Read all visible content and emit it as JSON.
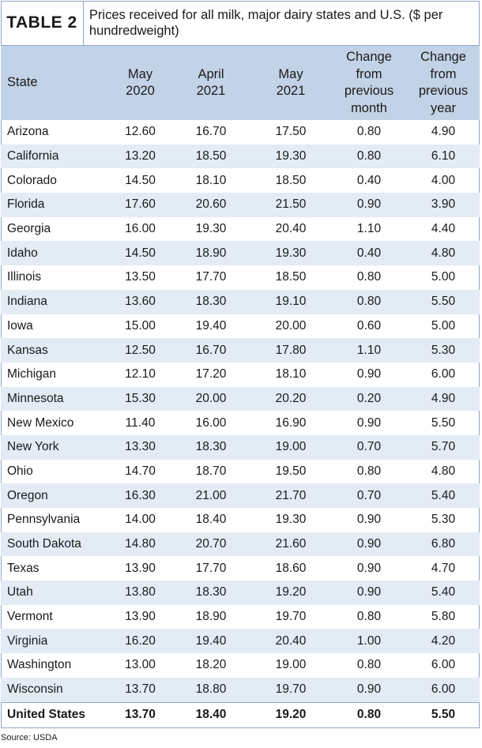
{
  "table_label": "TABLE 2",
  "title": "Prices received for all milk, major dairy states and U.S. ($ per hundredweight)",
  "columns": [
    {
      "line1": "State"
    },
    {
      "line1": "May",
      "line2": "2020"
    },
    {
      "line1": "April",
      "line2": "2021"
    },
    {
      "line1": "May",
      "line2": "2021"
    },
    {
      "line1": "Change",
      "line2": "from",
      "line3": "previous",
      "line4": "month"
    },
    {
      "line1": "Change",
      "line2": "from",
      "line3": "previous",
      "line4": "year"
    }
  ],
  "rows": [
    [
      "Arizona",
      "12.60",
      "16.70",
      "17.50",
      "0.80",
      "4.90"
    ],
    [
      "California",
      "13.20",
      "18.50",
      "19.30",
      "0.80",
      "6.10"
    ],
    [
      "Colorado",
      "14.50",
      "18.10",
      "18.50",
      "0.40",
      "4.00"
    ],
    [
      "Florida",
      "17.60",
      "20.60",
      "21.50",
      "0.90",
      "3.90"
    ],
    [
      "Georgia",
      "16.00",
      "19.30",
      "20.40",
      "1.10",
      "4.40"
    ],
    [
      "Idaho",
      "14.50",
      "18.90",
      "19.30",
      "0.40",
      "4.80"
    ],
    [
      "Illinois",
      "13.50",
      "17.70",
      "18.50",
      "0.80",
      "5.00"
    ],
    [
      "Indiana",
      "13.60",
      "18.30",
      "19.10",
      "0.80",
      "5.50"
    ],
    [
      "Iowa",
      "15.00",
      "19.40",
      "20.00",
      "0.60",
      "5.00"
    ],
    [
      "Kansas",
      "12.50",
      "16.70",
      "17.80",
      "1.10",
      "5.30"
    ],
    [
      "Michigan",
      "12.10",
      "17.20",
      "18.10",
      "0.90",
      "6.00"
    ],
    [
      "Minnesota",
      "15.30",
      "20.00",
      "20.20",
      "0.20",
      "4.90"
    ],
    [
      "New Mexico",
      "11.40",
      "16.00",
      "16.90",
      "0.90",
      "5.50"
    ],
    [
      "New York",
      "13.30",
      "18.30",
      "19.00",
      "0.70",
      "5.70"
    ],
    [
      "Ohio",
      "14.70",
      "18.70",
      "19.50",
      "0.80",
      "4.80"
    ],
    [
      "Oregon",
      "16.30",
      "21.00",
      "21.70",
      "0.70",
      "5.40"
    ],
    [
      "Pennsylvania",
      "14.00",
      "18.40",
      "19.30",
      "0.90",
      "5.30"
    ],
    [
      "South Dakota",
      "14.80",
      "20.70",
      "21.60",
      "0.90",
      "6.80"
    ],
    [
      "Texas",
      "13.90",
      "17.70",
      "18.60",
      "0.90",
      "4.70"
    ],
    [
      "Utah",
      "13.80",
      "18.30",
      "19.20",
      "0.90",
      "5.40"
    ],
    [
      "Vermont",
      "13.90",
      "18.90",
      "19.70",
      "0.80",
      "5.80"
    ],
    [
      "Virginia",
      "16.20",
      "19.40",
      "20.40",
      "1.00",
      "4.20"
    ],
    [
      "Washington",
      "13.00",
      "18.20",
      "19.00",
      "0.80",
      "6.00"
    ],
    [
      "Wisconsin",
      "13.70",
      "18.80",
      "19.70",
      "0.90",
      "6.00"
    ]
  ],
  "total": [
    "United States",
    "13.70",
    "18.40",
    "19.20",
    "0.80",
    "5.50"
  ],
  "source": "Source: USDA",
  "colors": {
    "header_bg": "#c3d3e7",
    "stripe_bg": "#e3ebf5",
    "border": "#8fa7c4"
  }
}
